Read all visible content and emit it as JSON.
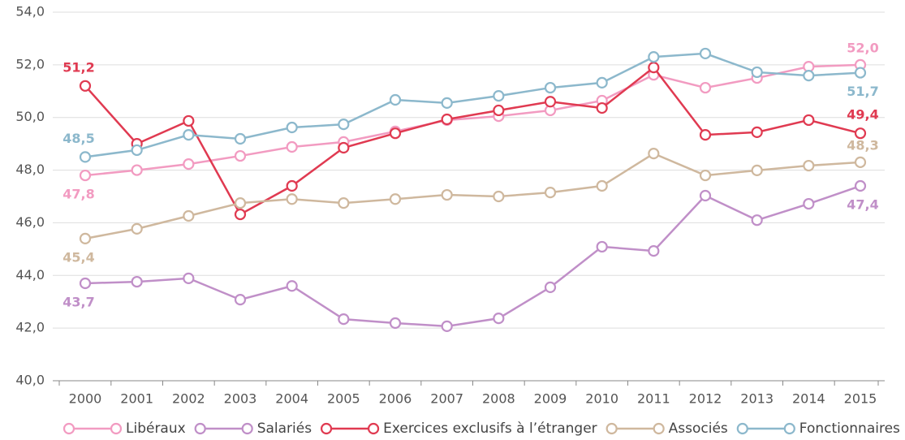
{
  "chart_data": {
    "type": "line",
    "categories": [
      "2000",
      "2001",
      "2002",
      "2003",
      "2004",
      "2005",
      "2006",
      "2007",
      "2008",
      "2009",
      "2010",
      "2011",
      "2012",
      "2013",
      "2014",
      "2015"
    ],
    "ylim": [
      40,
      54
    ],
    "yticks": [
      {
        "value": 40,
        "label": "40,0"
      },
      {
        "value": 42,
        "label": "42,0"
      },
      {
        "value": 44,
        "label": "44,0"
      },
      {
        "value": 46,
        "label": "46,0"
      },
      {
        "value": 48,
        "label": "48,0"
      },
      {
        "value": 50,
        "label": "50,0"
      },
      {
        "value": 52,
        "label": "52,0"
      },
      {
        "value": 54,
        "label": "54,0"
      }
    ],
    "grid": true,
    "legend": "bottom",
    "series": [
      {
        "name": "Libéraux",
        "color": "#f29bc1",
        "values": [
          47.8,
          48.0,
          48.23,
          48.54,
          48.88,
          49.07,
          49.47,
          49.9,
          50.05,
          50.27,
          50.64,
          51.62,
          51.13,
          51.5,
          51.93,
          52.0
        ],
        "value_labels": [
          "47,8",
          null,
          null,
          null,
          null,
          null,
          null,
          null,
          null,
          null,
          null,
          null,
          null,
          null,
          null,
          "52,0"
        ]
      },
      {
        "name": "Salariés",
        "color": "#c08fc8",
        "values": [
          43.7,
          43.76,
          43.89,
          43.08,
          43.6,
          42.34,
          42.19,
          42.07,
          42.37,
          43.55,
          45.09,
          44.93,
          47.03,
          46.1,
          46.72,
          47.4
        ],
        "value_labels": [
          "43,7",
          null,
          null,
          null,
          null,
          null,
          null,
          null,
          null,
          null,
          null,
          null,
          null,
          null,
          null,
          "47,4"
        ]
      },
      {
        "name": "Exercices exclusifs à l’étranger",
        "color": "#e03a51",
        "values": [
          51.2,
          49.0,
          49.87,
          46.32,
          47.4,
          48.85,
          49.4,
          49.93,
          50.27,
          50.6,
          50.36,
          51.9,
          49.34,
          49.44,
          49.9,
          49.4
        ],
        "value_labels": [
          "51,2",
          null,
          null,
          null,
          null,
          null,
          null,
          null,
          null,
          null,
          null,
          null,
          null,
          null,
          null,
          "49,4"
        ]
      },
      {
        "name": "Associés",
        "color": "#cfb89e",
        "values": [
          45.4,
          45.77,
          46.26,
          46.75,
          46.9,
          46.75,
          46.9,
          47.06,
          47.0,
          47.15,
          47.4,
          48.63,
          47.8,
          47.99,
          48.17,
          48.3
        ],
        "value_labels": [
          "45,4",
          null,
          null,
          null,
          null,
          null,
          null,
          null,
          null,
          null,
          null,
          null,
          null,
          null,
          null,
          "48,3"
        ]
      },
      {
        "name": "Fonctionnaires",
        "color": "#8cb8cc",
        "values": [
          48.5,
          48.76,
          49.34,
          49.19,
          49.62,
          49.74,
          50.67,
          50.55,
          50.82,
          51.13,
          51.32,
          52.3,
          52.43,
          51.72,
          51.59,
          51.7
        ],
        "value_labels": [
          "48,5",
          null,
          null,
          null,
          null,
          null,
          null,
          null,
          null,
          null,
          null,
          null,
          null,
          null,
          null,
          "51,7"
        ]
      }
    ]
  }
}
